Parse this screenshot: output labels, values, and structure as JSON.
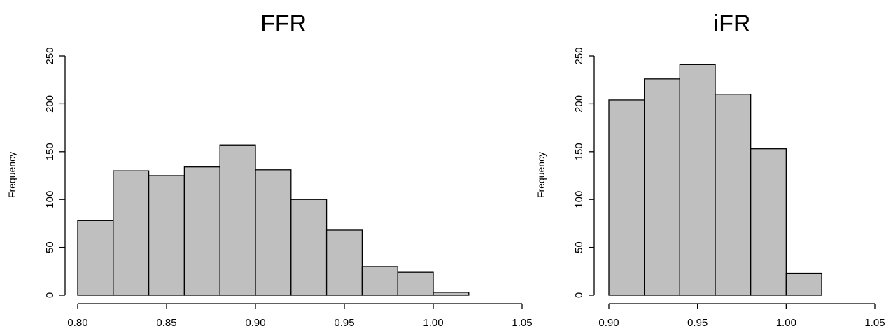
{
  "chart_data": [
    {
      "type": "bar",
      "title": "FFR",
      "xlabel": "",
      "ylabel": "Frequency",
      "bin_edges": [
        0.8,
        0.82,
        0.84,
        0.86,
        0.88,
        0.9,
        0.92,
        0.94,
        0.96,
        0.98,
        1.0,
        1.02
      ],
      "values": [
        78,
        130,
        125,
        134,
        157,
        131,
        100,
        68,
        30,
        24,
        3
      ],
      "xlim": [
        0.8,
        1.05
      ],
      "ylim": [
        0,
        250
      ],
      "x_ticks": [
        "0.80",
        "0.85",
        "0.90",
        "0.95",
        "1.00",
        "1.05"
      ],
      "y_ticks": [
        "0",
        "50",
        "100",
        "150",
        "200",
        "250"
      ],
      "bar_color": "#bfbfbf",
      "grid": false
    },
    {
      "type": "bar",
      "title": "iFR",
      "xlabel": "",
      "ylabel": "Frequency",
      "bin_edges": [
        0.9,
        0.92,
        0.94,
        0.96,
        0.98,
        1.0,
        1.02
      ],
      "values": [
        204,
        226,
        241,
        210,
        153,
        23
      ],
      "xlim": [
        0.9,
        1.05
      ],
      "ylim": [
        0,
        250
      ],
      "x_ticks": [
        "0.90",
        "0.95",
        "1.00",
        "1.05"
      ],
      "y_ticks": [
        "0",
        "50",
        "100",
        "150",
        "200",
        "250"
      ],
      "bar_color": "#bfbfbf",
      "grid": false
    }
  ]
}
